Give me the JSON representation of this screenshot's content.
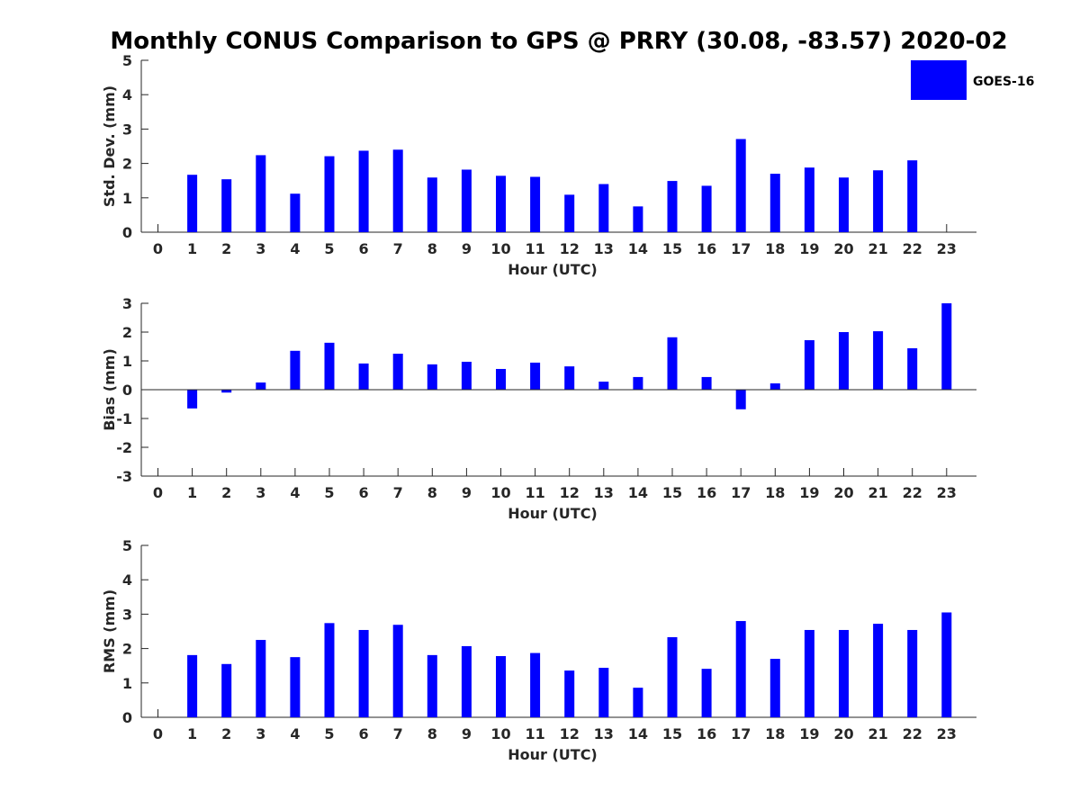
{
  "chart_data": {
    "title": "Monthly CONUS Comparison to GPS @ PRRY (30.08, -83.57) 2020-02",
    "bar_color": "#0000ff",
    "legend": {
      "label": "GOES-16",
      "placement": "top-right"
    },
    "panels": [
      {
        "type": "bar",
        "ylabel": "Std. Dev. (mm)",
        "xlabel": "Hour (UTC)",
        "ylim": [
          0,
          5
        ],
        "yticks": [
          0,
          1,
          2,
          3,
          4,
          5
        ],
        "categories": [
          0,
          1,
          2,
          3,
          4,
          5,
          6,
          7,
          8,
          9,
          10,
          11,
          12,
          13,
          14,
          15,
          16,
          17,
          18,
          19,
          20,
          21,
          22,
          23
        ],
        "series": [
          {
            "name": "GOES-16",
            "values": [
              null,
              1.67,
              1.54,
              2.24,
              1.12,
              2.21,
              2.37,
              2.4,
              1.59,
              1.82,
              1.64,
              1.61,
              1.09,
              1.4,
              0.75,
              1.49,
              1.35,
              2.71,
              1.7,
              1.88,
              1.59,
              1.8,
              2.09,
              null
            ]
          }
        ]
      },
      {
        "type": "bar",
        "ylabel": "Bias (mm)",
        "xlabel": "Hour (UTC)",
        "ylim": [
          -3,
          3
        ],
        "yticks": [
          -3,
          -2,
          -1,
          0,
          1,
          2,
          3
        ],
        "zero_line": true,
        "categories": [
          0,
          1,
          2,
          3,
          4,
          5,
          6,
          7,
          8,
          9,
          10,
          11,
          12,
          13,
          14,
          15,
          16,
          17,
          18,
          19,
          20,
          21,
          22,
          23
        ],
        "series": [
          {
            "name": "GOES-16",
            "values": [
              null,
              -0.65,
              -0.1,
              0.25,
              1.35,
              1.63,
              0.91,
              1.25,
              0.88,
              0.97,
              0.72,
              0.94,
              0.81,
              0.28,
              0.44,
              1.82,
              0.44,
              -0.68,
              0.22,
              1.72,
              2.0,
              2.03,
              1.44,
              3.0
            ]
          }
        ]
      },
      {
        "type": "bar",
        "ylabel": "RMS (mm)",
        "xlabel": "Hour (UTC)",
        "ylim": [
          0,
          5
        ],
        "yticks": [
          0,
          1,
          2,
          3,
          4,
          5
        ],
        "categories": [
          0,
          1,
          2,
          3,
          4,
          5,
          6,
          7,
          8,
          9,
          10,
          11,
          12,
          13,
          14,
          15,
          16,
          17,
          18,
          19,
          20,
          21,
          22,
          23
        ],
        "series": [
          {
            "name": "GOES-16",
            "values": [
              null,
              1.81,
              1.55,
              2.25,
              1.75,
              2.74,
              2.54,
              2.69,
              1.81,
              2.07,
              1.78,
              1.87,
              1.36,
              1.44,
              0.86,
              2.33,
              1.41,
              2.8,
              1.7,
              2.54,
              2.54,
              2.72,
              2.54,
              3.05
            ]
          }
        ]
      }
    ]
  }
}
